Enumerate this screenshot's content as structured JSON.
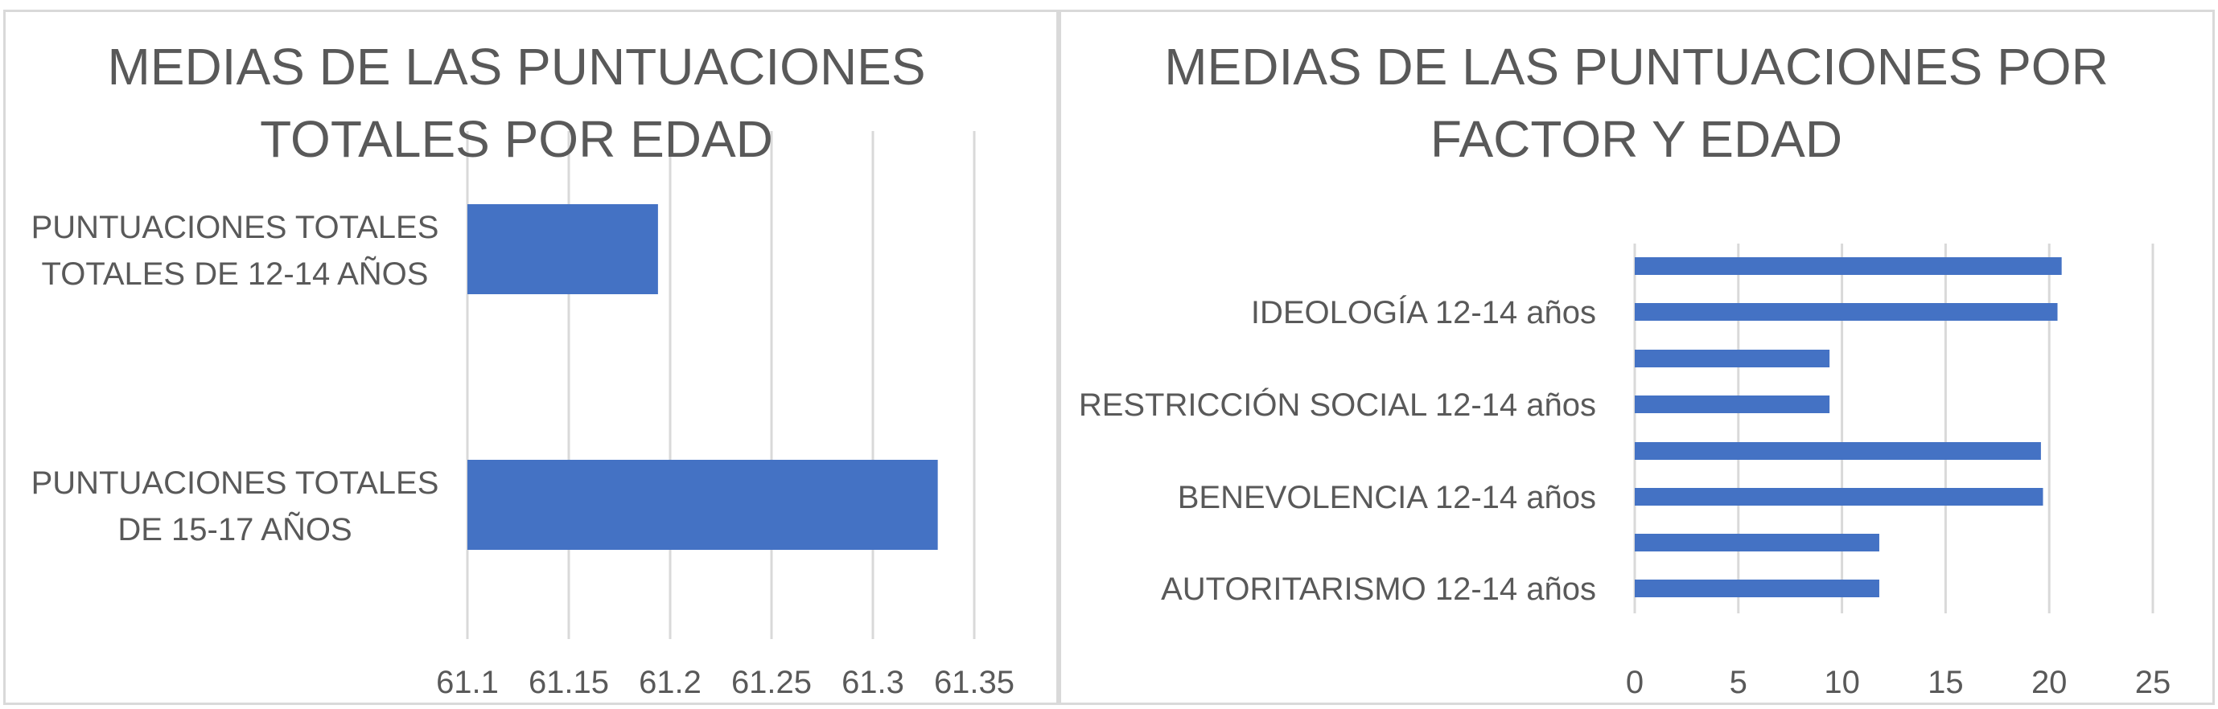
{
  "colors": {
    "bar": "#4472c4",
    "grid": "#d9d9d9",
    "text": "#595959"
  },
  "chart_data": [
    {
      "type": "bar",
      "orientation": "horizontal",
      "title": "MEDIAS DE LAS PUNTUACIONES TOTALES POR EDAD",
      "title_lines": [
        "MEDIAS DE LAS PUNTUACIONES",
        "TOTALES POR EDAD"
      ],
      "categories": [
        "PUNTUACIONES TOTALES TOTALES DE 12-14 AÑOS",
        "PUNTUACIONES TOTALES DE 15-17 AÑOS"
      ],
      "category_lines": [
        [
          "PUNTUACIONES TOTALES",
          "TOTALES DE 12-14 AÑOS"
        ],
        [
          "PUNTUACIONES TOTALES",
          "DE 15-17 AÑOS"
        ]
      ],
      "values": [
        61.194,
        61.332
      ],
      "xlim": [
        61.1,
        61.35
      ],
      "xticks": [
        "61.1",
        "61.15",
        "61.2",
        "61.25",
        "61.3",
        "61.35"
      ],
      "grid": true,
      "legend": "none"
    },
    {
      "type": "bar",
      "orientation": "horizontal",
      "title": "MEDIAS DE LAS PUNTUACIONES POR FACTOR Y EDAD",
      "title_lines": [
        "MEDIAS DE LAS PUNTUACIONES  POR",
        "FACTOR Y EDAD"
      ],
      "categories": [
        "",
        "IDEOLOGÍA 12-14 años",
        "",
        "RESTRICCIÓN SOCIAL 12-14 años",
        "",
        "BENEVOLENCIA 12-14 años",
        "",
        "AUTORITARISMO 12-14 años"
      ],
      "values": [
        20.6,
        20.4,
        9.4,
        9.4,
        19.6,
        19.7,
        11.8,
        11.8
      ],
      "xlim": [
        0,
        25
      ],
      "xticks": [
        "0",
        "5",
        "10",
        "15",
        "20",
        "25"
      ],
      "grid": true,
      "legend": "none"
    }
  ]
}
